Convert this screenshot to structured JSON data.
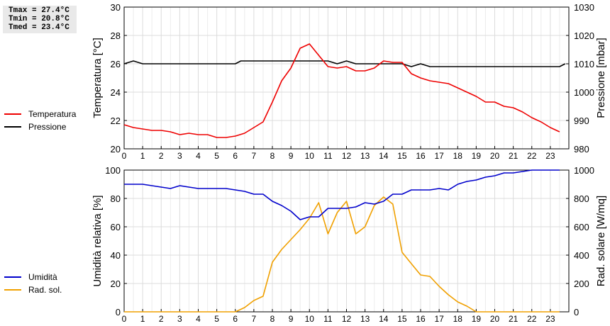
{
  "stats": {
    "tmax": "Tmax = 27.4°C",
    "tmin": "Tmin = 20.8°C",
    "tmed": "Tmed = 23.4°C"
  },
  "chart_data": [
    {
      "type": "line",
      "x_ticks": [
        "0",
        "1",
        "2",
        "3",
        "4",
        "5",
        "6",
        "7",
        "8",
        "9",
        "10",
        "11",
        "12",
        "13",
        "14",
        "15",
        "16",
        "17",
        "18",
        "19",
        "20",
        "21",
        "22",
        "23"
      ],
      "xlim": [
        0,
        24
      ],
      "ylabel": "Temperatura [°C]",
      "ylim": [
        20,
        30
      ],
      "y_ticks": [
        "20",
        "22",
        "24",
        "26",
        "28",
        "30"
      ],
      "y2label": "Pressione [mbar]",
      "y2lim": [
        980,
        1030
      ],
      "y2_ticks": [
        "980",
        "990",
        "1000",
        "1010",
        "1020",
        "1030"
      ],
      "grid": true,
      "legend_position": "left",
      "series": [
        {
          "name": "Temperatura",
          "axis": "left",
          "color": "#ee0000",
          "x": [
            0,
            0.5,
            1,
            1.5,
            2,
            2.5,
            3,
            3.5,
            4,
            4.5,
            5,
            5.5,
            6,
            6.5,
            7,
            7.5,
            8,
            8.5,
            9,
            9.5,
            10,
            10.5,
            11,
            11.5,
            12,
            12.5,
            13,
            13.5,
            14,
            14.5,
            15,
            15.5,
            16,
            16.5,
            17,
            17.5,
            18,
            18.5,
            19,
            19.5,
            20,
            20.5,
            21,
            21.5,
            22,
            22.5,
            23,
            23.5
          ],
          "y": [
            21.7,
            21.5,
            21.4,
            21.3,
            21.3,
            21.2,
            21.0,
            21.1,
            21.0,
            21.0,
            20.8,
            20.8,
            20.9,
            21.1,
            21.5,
            21.9,
            23.3,
            24.8,
            25.7,
            27.1,
            27.4,
            26.6,
            25.8,
            25.7,
            25.8,
            25.5,
            25.5,
            25.7,
            26.2,
            26.1,
            26.1,
            25.3,
            25.0,
            24.8,
            24.7,
            24.6,
            24.3,
            24.0,
            23.7,
            23.3,
            23.3,
            23.0,
            22.9,
            22.6,
            22.2,
            21.9,
            21.5,
            21.2
          ]
        },
        {
          "name": "Pressione",
          "axis": "right",
          "color": "#000000",
          "x": [
            0,
            0.5,
            1,
            6,
            6.3,
            11,
            11.5,
            12,
            12.5,
            15,
            15.5,
            16,
            16.5,
            23.5,
            23.8
          ],
          "y": [
            1010,
            1011,
            1010,
            1010,
            1011,
            1011,
            1010,
            1011,
            1010,
            1010,
            1009,
            1010,
            1009,
            1009,
            1010
          ]
        }
      ]
    },
    {
      "type": "line",
      "x_ticks": [
        "0",
        "1",
        "2",
        "3",
        "4",
        "5",
        "6",
        "7",
        "8",
        "9",
        "10",
        "11",
        "12",
        "13",
        "14",
        "15",
        "16",
        "17",
        "18",
        "19",
        "20",
        "21",
        "22",
        "23"
      ],
      "xlim": [
        0,
        24
      ],
      "ylabel": "Umidità relativa [%]",
      "ylim": [
        0,
        100
      ],
      "y_ticks": [
        "0",
        "20",
        "40",
        "60",
        "80",
        "100"
      ],
      "y2label": "Rad. solare [W/mq]",
      "y2lim": [
        0,
        1000
      ],
      "y2_ticks": [
        "0",
        "200",
        "400",
        "600",
        "800",
        "1000"
      ],
      "grid": true,
      "legend_position": "left",
      "series": [
        {
          "name": "Umidità",
          "axis": "left",
          "color": "#0000cc",
          "x": [
            0,
            1,
            1.5,
            2,
            2.5,
            3,
            3.5,
            4,
            4.5,
            5,
            5.5,
            6,
            6.5,
            7,
            7.5,
            8,
            8.5,
            9,
            9.5,
            10,
            10.5,
            11,
            11.5,
            12,
            12.5,
            13,
            13.5,
            14,
            14.5,
            15,
            15.5,
            16,
            16.5,
            17,
            17.5,
            18,
            18.5,
            19,
            19.5,
            20,
            20.5,
            21,
            21.5,
            22,
            22.5,
            23,
            23.5
          ],
          "y": [
            90,
            90,
            89,
            88,
            87,
            89,
            88,
            87,
            87,
            87,
            87,
            86,
            85,
            83,
            83,
            78,
            75,
            71,
            65,
            67,
            67,
            73,
            73,
            73,
            74,
            77,
            76,
            78,
            83,
            83,
            86,
            86,
            86,
            87,
            86,
            90,
            92,
            93,
            95,
            96,
            98,
            98,
            99,
            100,
            100,
            100,
            100
          ]
        },
        {
          "name": "Rad. sol.",
          "axis": "right",
          "color": "#f0a000",
          "x": [
            0,
            6,
            6.5,
            7,
            7.5,
            8,
            8.5,
            9,
            9.5,
            10,
            10.5,
            11,
            11.5,
            12,
            12.5,
            13,
            13.5,
            14,
            14.5,
            15,
            15.5,
            16,
            16.5,
            17,
            17.5,
            18,
            18.5,
            19,
            23.5
          ],
          "y": [
            0,
            0,
            30,
            80,
            110,
            350,
            440,
            510,
            580,
            660,
            770,
            550,
            700,
            780,
            550,
            600,
            750,
            810,
            760,
            420,
            340,
            260,
            250,
            180,
            120,
            70,
            40,
            0,
            0
          ]
        }
      ]
    }
  ]
}
